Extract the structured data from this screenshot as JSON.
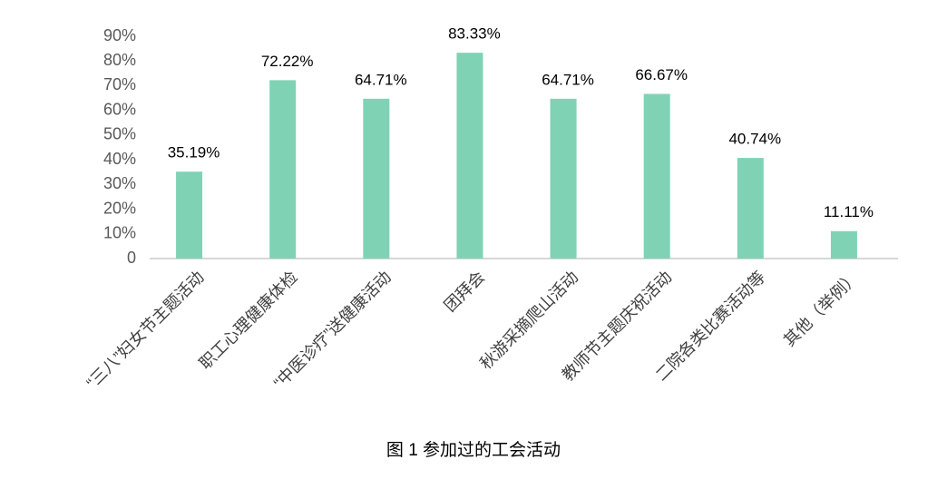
{
  "chart_data": {
    "type": "bar",
    "title": "图 1  参加过的工会活动",
    "categories": [
      "“三八”妇女节主题活动",
      "职工心理健康体检",
      "“中医诊疗”送健康活动",
      "团拜会",
      "秋游采摘爬山活动",
      "教师节主题庆祝活动",
      "二院各类比赛活动等",
      "其他（举例）"
    ],
    "values": [
      35.19,
      72.22,
      64.71,
      83.33,
      64.71,
      66.67,
      40.74,
      11.11
    ],
    "value_labels": [
      "35.19%",
      "72.22%",
      "64.71%",
      "83.33%",
      "64.71%",
      "66.67%",
      "40.74%",
      "11.11%"
    ],
    "color": "#7fd3b4",
    "ylim": [
      0,
      90
    ],
    "yticks": [
      0,
      {
        "value": 10,
        "label": "10%"
      },
      {
        "value": 20,
        "label": "20%"
      },
      {
        "value": 30,
        "label": "30%"
      },
      {
        "value": 40,
        "label": "40%"
      },
      {
        "value": 50,
        "label": "50%"
      },
      {
        "value": 60,
        "label": "60%"
      },
      {
        "value": 70,
        "label": "70%"
      },
      {
        "value": 80,
        "label": "80%"
      },
      {
        "value": 90,
        "label": "90%"
      }
    ],
    "grid": false
  }
}
